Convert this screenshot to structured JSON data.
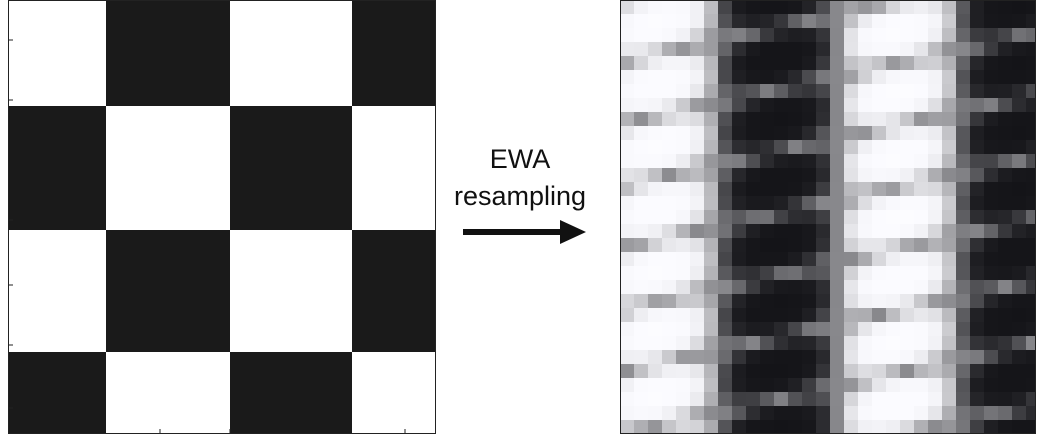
{
  "label": {
    "line1": "EWA",
    "line2": "resampling"
  }
}
